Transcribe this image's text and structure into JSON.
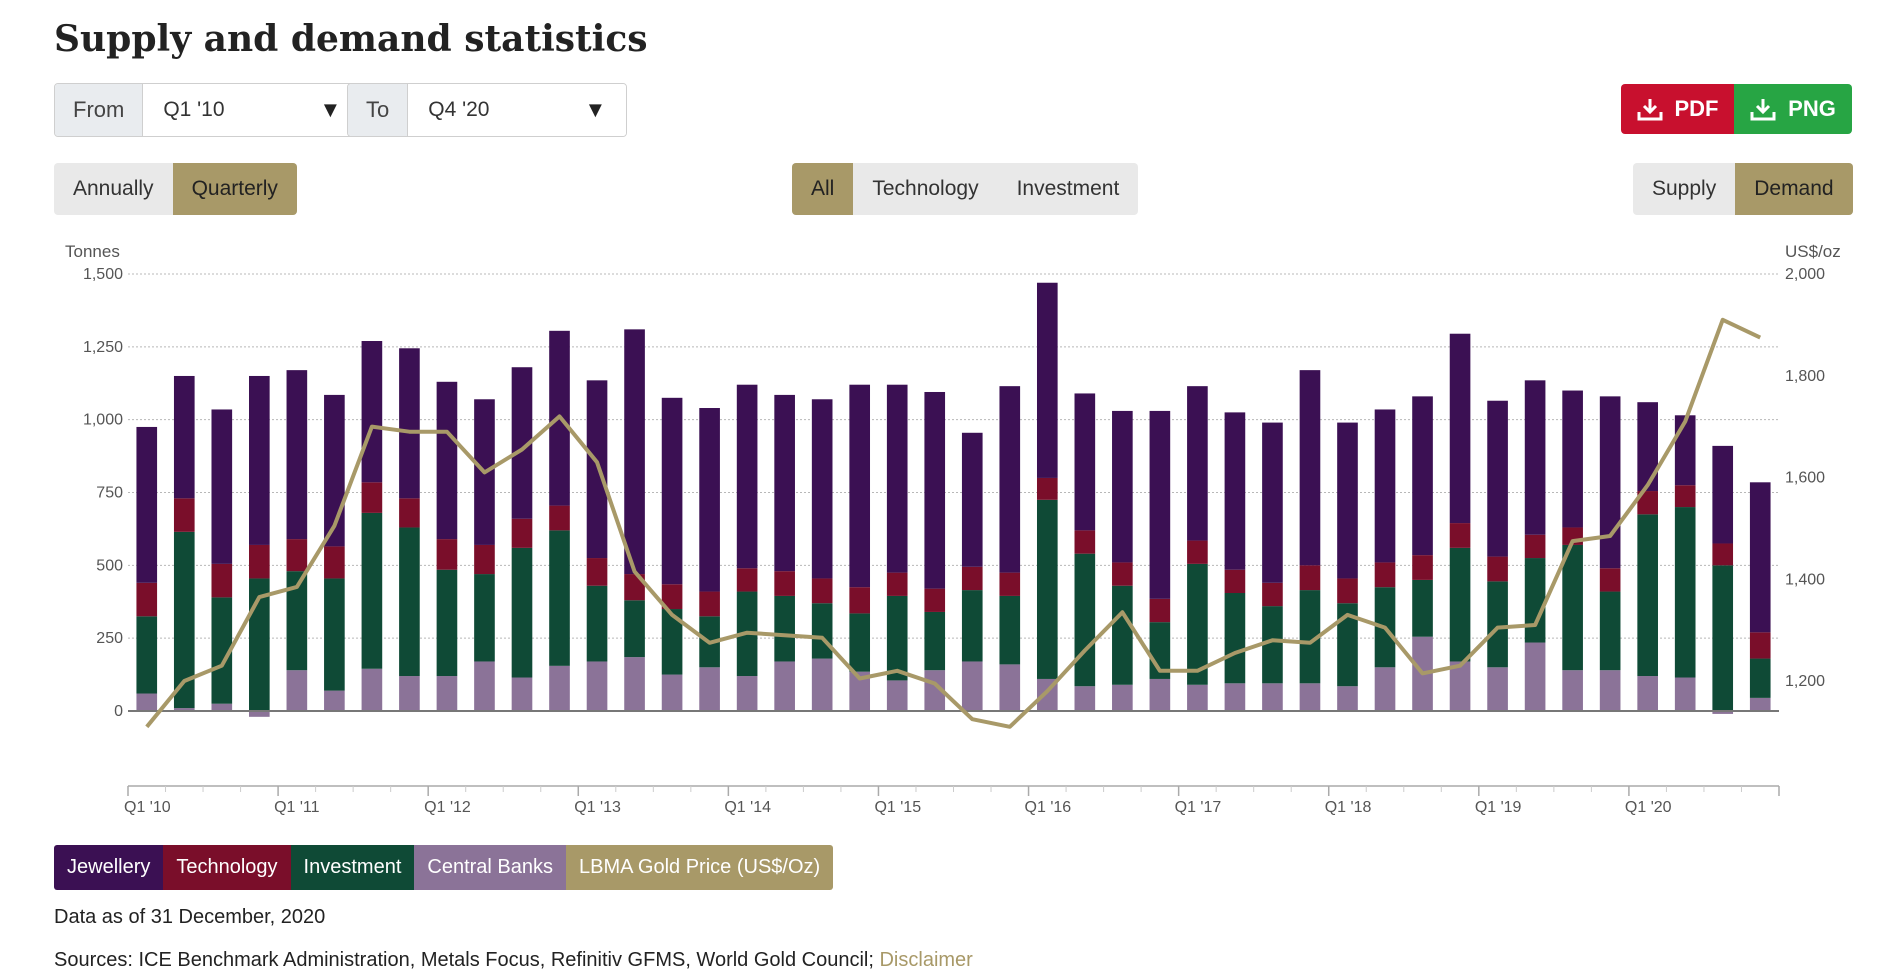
{
  "title": "Supply and demand statistics",
  "range": {
    "from_label": "From",
    "from_value": "Q1 '10",
    "to_label": "To",
    "to_value": "Q4 '20"
  },
  "downloads": {
    "pdf_label": "PDF",
    "png_label": "PNG"
  },
  "frequency": {
    "options": [
      "Annually",
      "Quarterly"
    ],
    "selected": "Quarterly"
  },
  "filter": {
    "options": [
      "All",
      "Technology",
      "Investment"
    ],
    "selected": "All"
  },
  "mode": {
    "options": [
      "Supply",
      "Demand"
    ],
    "selected": "Demand"
  },
  "colors": {
    "Jewellery": "#3b1053",
    "Technology": "#7a0e2a",
    "Investment": "#0f4a36",
    "Central Banks": "#8b7398",
    "LBMA Gold Price (US$/Oz)": "#a89968"
  },
  "chart_data": {
    "type": "bar",
    "stacked": true,
    "y_left_label": "Tonnes",
    "y_right_label": "US$/oz",
    "ylim": [
      -400,
      1500
    ],
    "y_ticks": [
      0,
      250,
      500,
      750,
      1000,
      1250,
      1500
    ],
    "y_tick_labels": [
      "0",
      "250",
      "500",
      "750",
      "1,000",
      "1,250",
      "1,500"
    ],
    "y2lim": [
      1050,
      2000
    ],
    "y2_ticks": [
      1200,
      1400,
      1600,
      1800,
      2000
    ],
    "y2_tick_labels": [
      "1,200",
      "1,400",
      "1,600",
      "1,800",
      "2,000"
    ],
    "categories": [
      "Q1 '10",
      "Q2 '10",
      "Q3 '10",
      "Q4 '10",
      "Q1 '11",
      "Q2 '11",
      "Q3 '11",
      "Q4 '11",
      "Q1 '12",
      "Q2 '12",
      "Q3 '12",
      "Q4 '12",
      "Q1 '13",
      "Q2 '13",
      "Q3 '13",
      "Q4 '13",
      "Q1 '14",
      "Q2 '14",
      "Q3 '14",
      "Q4 '14",
      "Q1 '15",
      "Q2 '15",
      "Q3 '15",
      "Q4 '15",
      "Q1 '16",
      "Q2 '16",
      "Q3 '16",
      "Q4 '16",
      "Q1 '17",
      "Q2 '17",
      "Q3 '17",
      "Q4 '17",
      "Q1 '18",
      "Q2 '18",
      "Q3 '18",
      "Q4 '18",
      "Q1 '19",
      "Q2 '19",
      "Q3 '19",
      "Q4 '19",
      "Q1 '20",
      "Q2 '20",
      "Q3 '20",
      "Q4 '20"
    ],
    "x_tick_labels": [
      "Q1 '10",
      "Q1 '11",
      "Q1 '12",
      "Q1 '13",
      "Q1 '14",
      "Q1 '15",
      "Q1 '16",
      "Q1 '17",
      "Q1 '18",
      "Q1 '19",
      "Q1 '20"
    ],
    "series": [
      {
        "name": "Central Banks",
        "values": [
          60,
          10,
          25,
          -20,
          140,
          70,
          145,
          120,
          120,
          170,
          115,
          155,
          170,
          185,
          125,
          150,
          120,
          170,
          180,
          135,
          105,
          140,
          170,
          160,
          110,
          85,
          90,
          110,
          90,
          95,
          95,
          95,
          85,
          150,
          255,
          170,
          150,
          235,
          140,
          140,
          120,
          115,
          -10,
          45
        ]
      },
      {
        "name": "Investment",
        "values": [
          265,
          605,
          365,
          455,
          340,
          385,
          535,
          510,
          365,
          300,
          445,
          465,
          260,
          195,
          225,
          175,
          290,
          225,
          190,
          200,
          290,
          200,
          245,
          235,
          615,
          455,
          340,
          195,
          415,
          310,
          265,
          320,
          285,
          275,
          195,
          390,
          295,
          290,
          430,
          270,
          555,
          585,
          500,
          135
        ]
      },
      {
        "name": "Technology",
        "values": [
          115,
          115,
          115,
          115,
          110,
          110,
          105,
          100,
          105,
          100,
          100,
          85,
          95,
          90,
          85,
          85,
          80,
          85,
          85,
          90,
          80,
          80,
          80,
          80,
          75,
          80,
          80,
          80,
          80,
          80,
          80,
          85,
          85,
          85,
          85,
          85,
          85,
          80,
          60,
          80,
          80,
          75,
          75,
          90
        ]
      },
      {
        "name": "Jewellery",
        "values": [
          535,
          420,
          530,
          580,
          580,
          520,
          485,
          515,
          540,
          500,
          520,
          600,
          610,
          840,
          640,
          630,
          630,
          605,
          615,
          695,
          645,
          675,
          460,
          640,
          670,
          470,
          520,
          645,
          530,
          540,
          550,
          670,
          535,
          525,
          545,
          650,
          535,
          530,
          470,
          590,
          305,
          240,
          335,
          515
        ]
      }
    ],
    "line": {
      "name": "LBMA Gold Price (US$/Oz)",
      "values": [
        1110,
        1200,
        1230,
        1365,
        1385,
        1505,
        1700,
        1690,
        1690,
        1610,
        1655,
        1720,
        1630,
        1415,
        1330,
        1275,
        1295,
        1290,
        1285,
        1205,
        1220,
        1195,
        1125,
        1110,
        1180,
        1260,
        1335,
        1220,
        1220,
        1255,
        1280,
        1275,
        1330,
        1305,
        1215,
        1230,
        1305,
        1310,
        1475,
        1485,
        1585,
        1710,
        1910,
        1875
      ]
    }
  },
  "legend": [
    "Jewellery",
    "Technology",
    "Investment",
    "Central Banks",
    "LBMA Gold Price (US$/Oz)"
  ],
  "footer": {
    "data_as_of": "Data as of 31 December, 2020",
    "sources": "Sources: ICE Benchmark Administration, Metals Focus, Refinitiv GFMS, World Gold Council;",
    "disclaimer": "Disclaimer"
  }
}
